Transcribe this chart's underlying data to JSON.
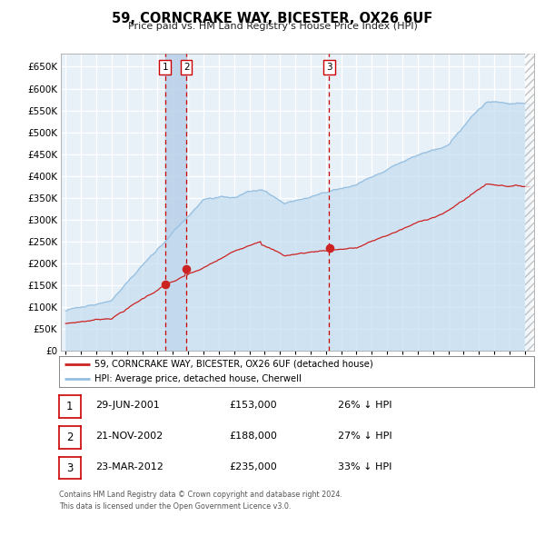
{
  "title": "59, CORNCRAKE WAY, BICESTER, OX26 6UF",
  "subtitle": "Price paid vs. HM Land Registry's House Price Index (HPI)",
  "ytick_values": [
    0,
    50000,
    100000,
    150000,
    200000,
    250000,
    300000,
    350000,
    400000,
    450000,
    500000,
    550000,
    600000,
    650000
  ],
  "xlim_start": 1994.7,
  "xlim_end": 2025.6,
  "ylim_top": 680000,
  "transactions": [
    {
      "label": "1",
      "date_num": 2001.49,
      "price": 153000
    },
    {
      "label": "2",
      "date_num": 2002.89,
      "price": 188000
    },
    {
      "label": "3",
      "date_num": 2012.22,
      "price": 235000
    }
  ],
  "hpi_color": "#95bfe0",
  "hpi_fill_color": "#c5ddf0",
  "property_color": "#cc2222",
  "plot_bg": "#e8f0f8",
  "grid_color": "#ffffff",
  "shade_color": "#b8d0e8",
  "legend_label_property": "59, CORNCRAKE WAY, BICESTER, OX26 6UF (detached house)",
  "legend_label_hpi": "HPI: Average price, detached house, Cherwell",
  "table_rows": [
    {
      "num": "1",
      "date": "29-JUN-2001",
      "price": "£153,000",
      "pct": "26% ↓ HPI"
    },
    {
      "num": "2",
      "date": "21-NOV-2002",
      "price": "£188,000",
      "pct": "27% ↓ HPI"
    },
    {
      "num": "3",
      "date": "23-MAR-2012",
      "price": "£235,000",
      "pct": "33% ↓ HPI"
    }
  ],
  "footer": "Contains HM Land Registry data © Crown copyright and database right 2024.\nThis data is licensed under the Open Government Licence v3.0."
}
